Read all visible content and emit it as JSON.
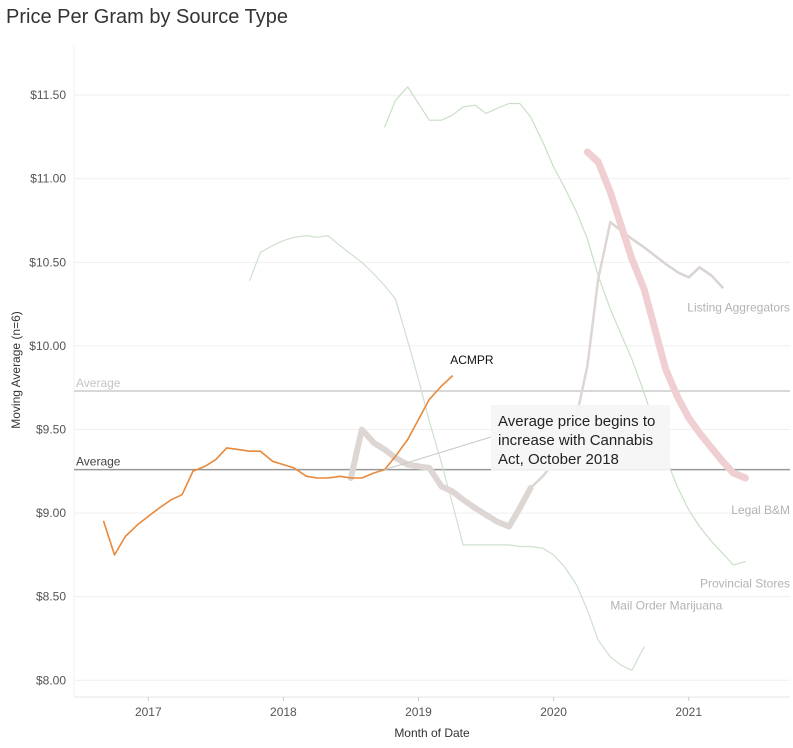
{
  "chart_data": {
    "type": "line",
    "title": "Price Per Gram by Source Type",
    "xlabel": "Month of Date",
    "ylabel": "Moving Average (n=6)",
    "ylim": [
      7.9,
      11.8
    ],
    "xlim": [
      2016.45,
      2021.75
    ],
    "x_ticks": [
      {
        "value": 2017,
        "label": "2017"
      },
      {
        "value": 2018,
        "label": "2018"
      },
      {
        "value": 2019,
        "label": "2019"
      },
      {
        "value": 2020,
        "label": "2020"
      },
      {
        "value": 2021,
        "label": "2021"
      }
    ],
    "y_ticks": [
      {
        "value": 8.0,
        "label": "$8.00"
      },
      {
        "value": 8.5,
        "label": "$8.50"
      },
      {
        "value": 9.0,
        "label": "$9.00"
      },
      {
        "value": 9.5,
        "label": "$9.50"
      },
      {
        "value": 10.0,
        "label": "$10.00"
      },
      {
        "value": 10.5,
        "label": "$10.50"
      },
      {
        "value": 11.0,
        "label": "$11.00"
      },
      {
        "value": 11.5,
        "label": "$11.50"
      }
    ],
    "reference_lines": [
      {
        "label": "Average",
        "value": 9.73,
        "color": "#cccccc"
      },
      {
        "label": "Average",
        "value": 9.26,
        "color": "#999999"
      }
    ],
    "series": [
      {
        "name": "Provincial Stores",
        "color": "#c9dfc6",
        "weight": 1.2,
        "label_side": "below",
        "x": [
          2018.75,
          2018.83,
          2018.92,
          2019.0,
          2019.08,
          2019.17,
          2019.25,
          2019.33,
          2019.42,
          2019.5,
          2019.58,
          2019.67,
          2019.75,
          2019.83,
          2019.92,
          2020.0,
          2020.08,
          2020.17,
          2020.25,
          2020.33,
          2020.42,
          2020.5,
          2020.58,
          2020.67,
          2020.75,
          2020.83,
          2020.92,
          2021.0,
          2021.08,
          2021.17,
          2021.25,
          2021.33,
          2021.42
        ],
        "y": [
          11.31,
          11.47,
          11.55,
          11.45,
          11.35,
          11.35,
          11.38,
          11.43,
          11.44,
          11.39,
          11.42,
          11.45,
          11.45,
          11.37,
          11.22,
          11.07,
          10.95,
          10.8,
          10.64,
          10.42,
          10.22,
          10.07,
          9.92,
          9.72,
          9.52,
          9.33,
          9.15,
          9.02,
          8.92,
          8.83,
          8.76,
          8.69,
          8.71
        ]
      },
      {
        "name": "Mail Order Marijuana",
        "color": "#cfe0cf",
        "weight": 1.2,
        "label_side": "above",
        "x": [
          2017.75,
          2017.83,
          2017.92,
          2018.0,
          2018.08,
          2018.17,
          2018.25,
          2018.33,
          2018.42,
          2018.5,
          2018.58,
          2018.67,
          2018.75,
          2018.83,
          2018.92,
          2019.0,
          2019.08,
          2019.17,
          2019.25,
          2019.33,
          2019.42,
          2019.5,
          2019.58,
          2019.67,
          2019.75,
          2019.83,
          2019.92,
          2020.0,
          2020.08,
          2020.17,
          2020.25,
          2020.33,
          2020.42,
          2020.5,
          2020.58,
          2020.67
        ],
        "y": [
          10.39,
          10.56,
          10.6,
          10.63,
          10.65,
          10.66,
          10.65,
          10.66,
          10.6,
          10.55,
          10.5,
          10.43,
          10.36,
          10.28,
          10.03,
          9.8,
          9.55,
          9.3,
          9.06,
          8.81,
          8.81,
          8.81,
          8.81,
          8.81,
          8.8,
          8.8,
          8.79,
          8.75,
          8.68,
          8.57,
          8.42,
          8.24,
          8.14,
          8.09,
          8.06,
          8.2
        ]
      },
      {
        "name": "Listing Aggregators",
        "color": "#d9d4d1",
        "weight": 2.5,
        "label_side": "below",
        "x": [
          2020.42,
          2020.5,
          2020.58,
          2020.67,
          2020.75,
          2020.83,
          2020.92,
          2021.0,
          2021.08,
          2021.17,
          2021.25
        ],
        "y": [
          10.74,
          10.69,
          10.64,
          10.59,
          10.54,
          10.49,
          10.44,
          10.41,
          10.47,
          10.42,
          10.35
        ]
      },
      {
        "name": "",
        "color": "#ddd6d3",
        "weight": 2.5,
        "label_side": "none",
        "x": [
          2019.83,
          2019.92,
          2020.0,
          2020.08,
          2020.17,
          2020.25,
          2020.33,
          2020.42
        ],
        "y": [
          9.15,
          9.22,
          9.3,
          9.42,
          9.58,
          9.88,
          10.4,
          10.74
        ]
      },
      {
        "name": "",
        "color": "#ddd6d3",
        "weight": 6,
        "label_side": "none",
        "x": [
          2018.5,
          2018.58,
          2018.67,
          2018.75,
          2018.83,
          2018.92,
          2019.0,
          2019.08,
          2019.17,
          2019.25,
          2019.33,
          2019.42,
          2019.5,
          2019.58,
          2019.67,
          2019.75,
          2019.83
        ],
        "y": [
          9.21,
          9.5,
          9.42,
          9.38,
          9.33,
          9.29,
          9.28,
          9.27,
          9.16,
          9.13,
          9.08,
          9.03,
          8.99,
          8.95,
          8.92,
          9.03,
          9.15
        ]
      },
      {
        "name": "Legal B&M",
        "color": "#efcfd1",
        "weight": 7,
        "label_side": "below",
        "x": [
          2020.25,
          2020.33,
          2020.42,
          2020.5,
          2020.58,
          2020.67,
          2020.75,
          2020.83,
          2020.92,
          2021.0,
          2021.08,
          2021.17,
          2021.25,
          2021.33,
          2021.42
        ],
        "y": [
          11.16,
          11.1,
          10.92,
          10.72,
          10.52,
          10.34,
          10.1,
          9.86,
          9.69,
          9.57,
          9.48,
          9.39,
          9.31,
          9.24,
          9.21
        ]
      },
      {
        "name": "ACMPR",
        "color": "#e8883a",
        "weight": 1.6,
        "label_side": "above",
        "x": [
          2016.67,
          2016.75,
          2016.83,
          2016.92,
          2017.0,
          2017.08,
          2017.17,
          2017.25,
          2017.33,
          2017.42,
          2017.5,
          2017.58,
          2017.67,
          2017.75,
          2017.83,
          2017.92,
          2018.0,
          2018.08,
          2018.17,
          2018.25,
          2018.33,
          2018.42,
          2018.5,
          2018.58,
          2018.67,
          2018.75,
          2018.83,
          2018.92,
          2019.0,
          2019.08,
          2019.17,
          2019.25
        ],
        "y": [
          8.95,
          8.75,
          8.86,
          8.93,
          8.98,
          9.03,
          9.08,
          9.11,
          9.25,
          9.28,
          9.32,
          9.39,
          9.38,
          9.37,
          9.37,
          9.31,
          9.29,
          9.27,
          9.22,
          9.21,
          9.21,
          9.22,
          9.21,
          9.21,
          9.24,
          9.26,
          9.34,
          9.44,
          9.56,
          9.68,
          9.76,
          9.82
        ]
      }
    ],
    "annotations": [
      {
        "text": [
          "Average price begins to",
          "increase with Cannabis",
          "Act, October 2018"
        ],
        "x": 2018.75,
        "y": 9.26
      }
    ]
  }
}
